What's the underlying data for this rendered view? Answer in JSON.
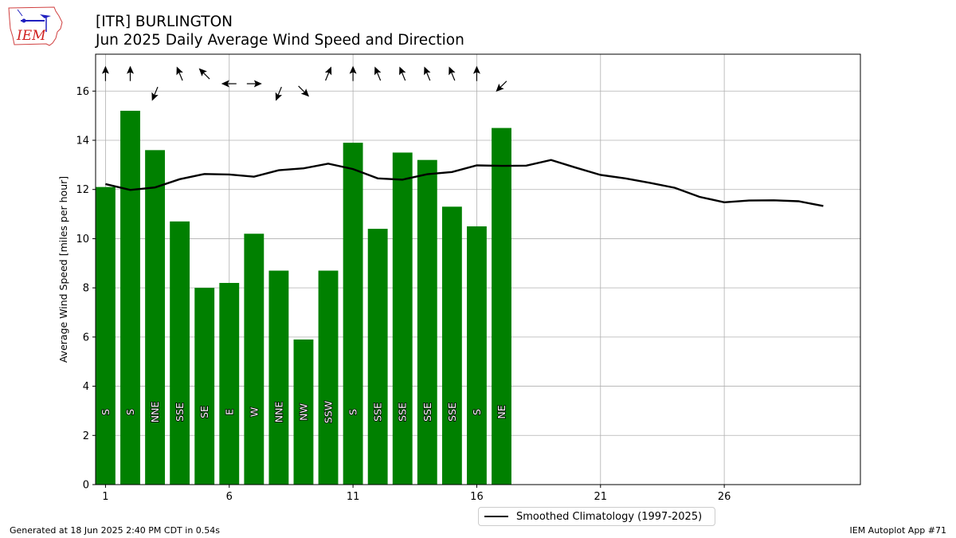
{
  "header": {
    "title_line1": "[ITR] BURLINGTON",
    "title_line2": "Jun 2025 Daily Average Wind Speed and Direction"
  },
  "logo": {
    "text": "IEM",
    "icon": "iem-iowa-map-logo"
  },
  "footer": {
    "left": "Generated at 18 Jun 2025 2:40 PM CDT in 0.54s",
    "right": "IEM Autoplot App #71"
  },
  "colors": {
    "bar": "#008000",
    "climo": "#000000",
    "grid": "#b0b0b0"
  },
  "chart_data": {
    "type": "bar",
    "ylabel": "Average Wind Speed [miles per hour]",
    "xlabel": "",
    "xlim": [
      0.6,
      31.5
    ],
    "ylim": [
      0,
      17.5
    ],
    "xticks": [
      1,
      6,
      11,
      16,
      21,
      26
    ],
    "yticks": [
      0,
      2,
      4,
      6,
      8,
      10,
      12,
      14,
      16
    ],
    "grid": true,
    "legend_placement": "bottom-center, below axes",
    "series": [
      {
        "name": "",
        "type": "bar",
        "days": [
          1,
          2,
          3,
          4,
          5,
          6,
          7,
          8,
          9,
          10,
          11,
          12,
          13,
          14,
          15,
          16,
          17
        ],
        "values": [
          12.1,
          15.2,
          13.6,
          10.7,
          8.0,
          8.2,
          10.2,
          8.7,
          5.9,
          8.7,
          13.9,
          10.4,
          13.5,
          13.2,
          11.3,
          10.5,
          14.5
        ],
        "direction_labels": [
          "S",
          "S",
          "NNE",
          "SSE",
          "SE",
          "E",
          "W",
          "NNE",
          "NW",
          "SSW",
          "S",
          "SSE",
          "SSE",
          "SSE",
          "SSE",
          "S",
          "NE"
        ]
      },
      {
        "name": "Smoothed Climatology (1997-2025)",
        "type": "line",
        "days": [
          1,
          2,
          3,
          4,
          5,
          6,
          7,
          8,
          9,
          10,
          11,
          12,
          13,
          14,
          15,
          16,
          17,
          18,
          19,
          20,
          21,
          22,
          23,
          24,
          25,
          26,
          27,
          28,
          29,
          30
        ],
        "values": [
          12.22,
          11.98,
          12.08,
          12.42,
          12.63,
          12.61,
          12.52,
          12.78,
          12.86,
          13.05,
          12.83,
          12.45,
          12.4,
          12.62,
          12.71,
          12.98,
          12.96,
          12.97,
          13.2,
          12.89,
          12.59,
          12.45,
          12.27,
          12.07,
          11.7,
          11.48,
          11.55,
          11.56,
          11.52,
          11.33
        ]
      }
    ]
  }
}
